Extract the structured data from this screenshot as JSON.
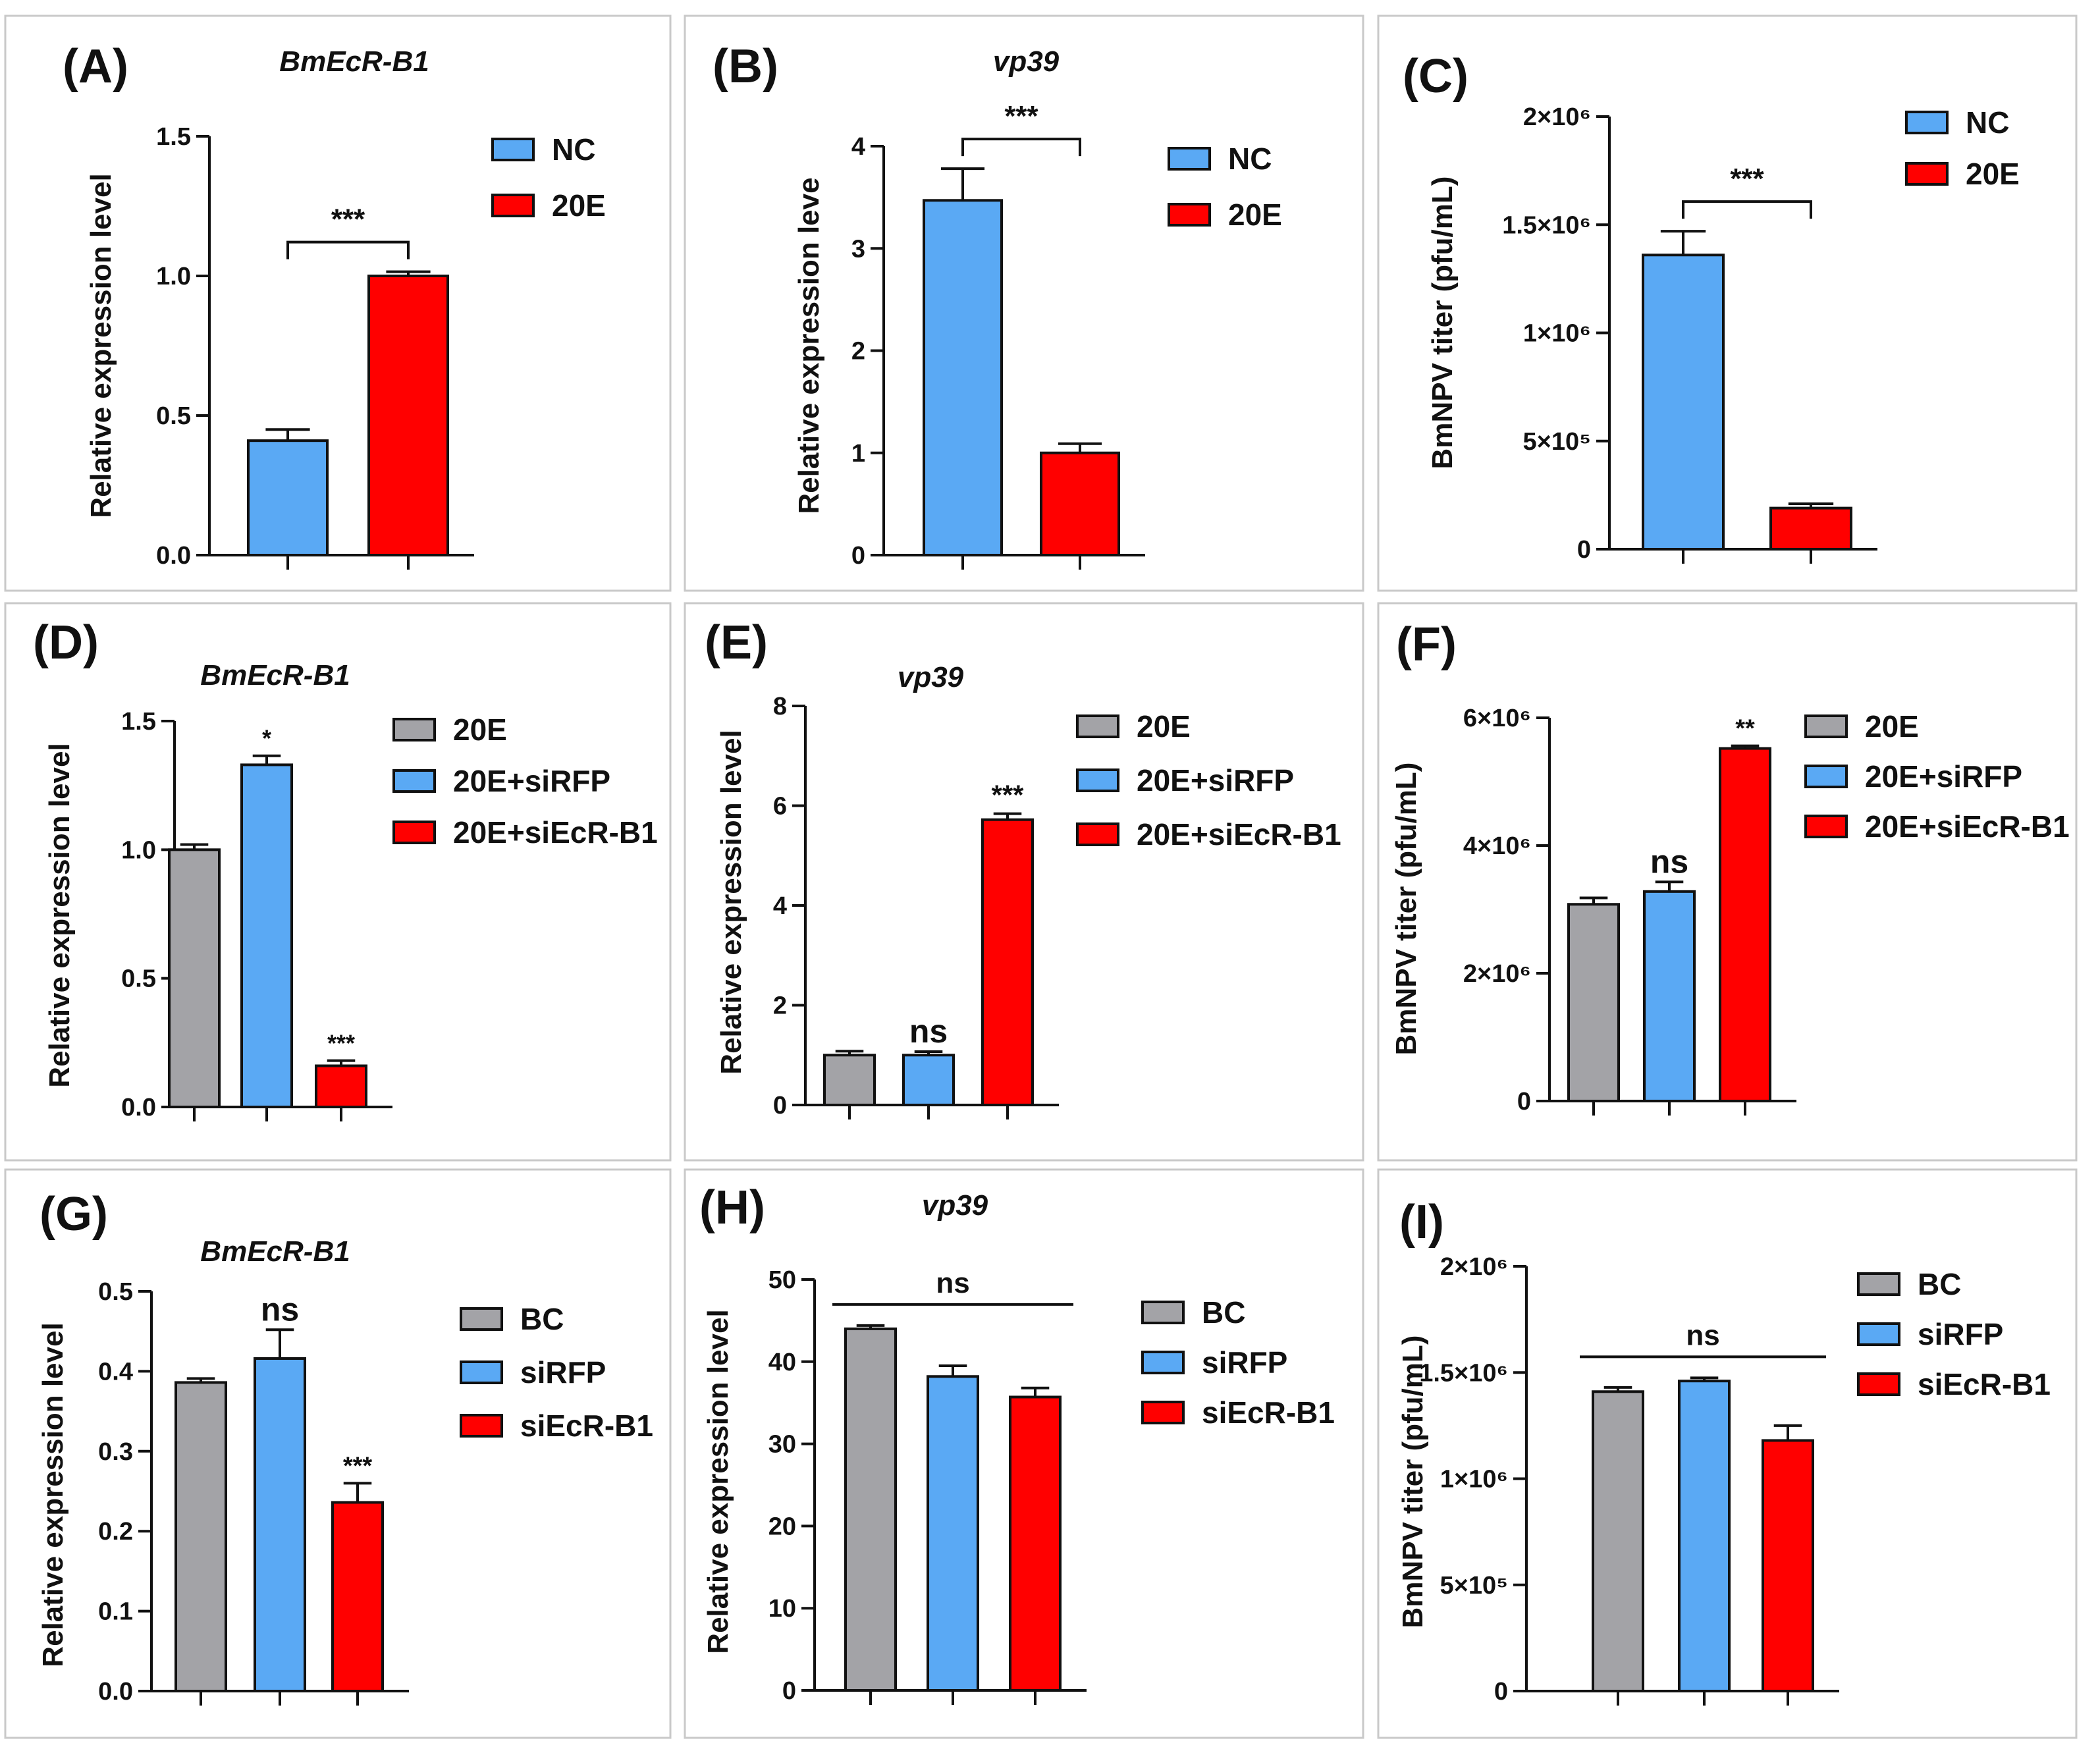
{
  "figure": {
    "colors": {
      "NC": "#5aa9f4",
      "20E": "#ff0000",
      "gray": "#a3a3a7",
      "blue": "#5aa9f4",
      "red": "#ff0000",
      "frame": "#c9c9c9",
      "ink": "#111111"
    }
  },
  "chart_data": [
    {
      "panel": "(A)",
      "title": "BmEcR-B1",
      "type": "bar",
      "ylabel": "Relative expression level",
      "ylim": [
        0,
        1.5
      ],
      "yticks": [
        "0.0",
        "0.5",
        "1.0",
        "1.5"
      ],
      "ytick_values": [
        0,
        0.5,
        1.0,
        1.5
      ],
      "categories": [
        "NC",
        "20E"
      ],
      "values": [
        0.41,
        1.0
      ],
      "errors": [
        0.04,
        0.015
      ],
      "colors": [
        "#5aa9f4",
        "#ff0000"
      ],
      "legend": [
        "NC",
        "20E"
      ],
      "significance": [
        {
          "text": "***",
          "type": "bracket",
          "from": 0,
          "to": 1
        }
      ]
    },
    {
      "panel": "(B)",
      "title": "vp39",
      "type": "bar",
      "ylabel": "Relative expression leve",
      "ylim": [
        0,
        4
      ],
      "yticks": [
        "0",
        "1",
        "2",
        "3",
        "4"
      ],
      "ytick_values": [
        0,
        1,
        2,
        3,
        4
      ],
      "categories": [
        "NC",
        "20E"
      ],
      "values": [
        3.47,
        1.0
      ],
      "errors": [
        0.31,
        0.09
      ],
      "colors": [
        "#5aa9f4",
        "#ff0000"
      ],
      "legend": [
        "NC",
        "20E"
      ],
      "significance": [
        {
          "text": "***",
          "type": "bracket",
          "from": 0,
          "to": 1
        }
      ]
    },
    {
      "panel": "(C)",
      "title": "",
      "type": "bar",
      "ylabel": "BmNPV titer (pfu/mL)",
      "ylim": [
        0,
        2000000
      ],
      "yticks": [
        "0",
        "5×10⁵",
        "1×10⁶",
        "1.5×10⁶",
        "2×10⁶"
      ],
      "ytick_values": [
        0,
        500000,
        1000000,
        1500000,
        2000000
      ],
      "categories": [
        "NC",
        "20E"
      ],
      "values": [
        1360000,
        190000
      ],
      "errors": [
        110000,
        20000
      ],
      "colors": [
        "#5aa9f4",
        "#ff0000"
      ],
      "legend": [
        "NC",
        "20E"
      ],
      "significance": [
        {
          "text": "***",
          "type": "bracket",
          "from": 0,
          "to": 1
        }
      ]
    },
    {
      "panel": "(D)",
      "title": "BmEcR-B1",
      "type": "bar",
      "ylabel": "Relative expression level",
      "ylim": [
        0,
        1.5
      ],
      "yticks": [
        "0.0",
        "0.5",
        "1.0",
        "1.5"
      ],
      "ytick_values": [
        0,
        0.5,
        1.0,
        1.5
      ],
      "categories": [
        "20E",
        "20E+siRFP",
        "20E+siEcR-B1"
      ],
      "values": [
        1.0,
        1.33,
        0.16
      ],
      "errors": [
        0.02,
        0.035,
        0.02
      ],
      "colors": [
        "#a3a3a7",
        "#5aa9f4",
        "#ff0000"
      ],
      "legend": [
        "20E",
        "20E+siRFP",
        "20E+siEcR-B1"
      ],
      "significance": [
        {
          "text": "*",
          "type": "bar",
          "index": 1
        },
        {
          "text": "***",
          "type": "bar",
          "index": 2
        }
      ]
    },
    {
      "panel": "(E)",
      "title": "vp39",
      "type": "bar",
      "ylabel": "Relative expression level",
      "ylim": [
        0,
        8
      ],
      "yticks": [
        "0",
        "2",
        "4",
        "6",
        "8"
      ],
      "ytick_values": [
        0,
        2,
        4,
        6,
        8
      ],
      "categories": [
        "20E",
        "20E+siRFP",
        "20E+siEcR-B1"
      ],
      "values": [
        1.0,
        1.0,
        5.72
      ],
      "errors": [
        0.08,
        0.07,
        0.12
      ],
      "colors": [
        "#a3a3a7",
        "#5aa9f4",
        "#ff0000"
      ],
      "legend": [
        "20E",
        "20E+siRFP",
        "20E+siEcR-B1"
      ],
      "significance": [
        {
          "text": "ns",
          "type": "bar",
          "index": 1
        },
        {
          "text": "***",
          "type": "bar",
          "index": 2
        }
      ]
    },
    {
      "panel": "(F)",
      "title": "",
      "type": "bar",
      "ylabel": "BmNPV titer (pfu/mL)",
      "ylim": [
        0,
        6000000
      ],
      "yticks": [
        "0",
        "2×10⁶",
        "4×10⁶",
        "6×10⁶"
      ],
      "ytick_values": [
        0,
        2000000,
        4000000,
        6000000
      ],
      "categories": [
        "20E",
        "20E+siRFP",
        "20E+siEcR-B1"
      ],
      "values": [
        3080000,
        3280000,
        5520000
      ],
      "errors": [
        100000,
        150000,
        40000
      ],
      "colors": [
        "#a3a3a7",
        "#5aa9f4",
        "#ff0000"
      ],
      "legend": [
        "20E",
        "20E+siRFP",
        "20E+siEcR-B1"
      ],
      "significance": [
        {
          "text": "ns",
          "type": "bar",
          "index": 1
        },
        {
          "text": "**",
          "type": "bar",
          "index": 2
        }
      ]
    },
    {
      "panel": "(G)",
      "title": "BmEcR-B1",
      "type": "bar",
      "ylabel": "Relative expression level",
      "ylim": [
        0,
        0.5
      ],
      "yticks": [
        "0.0",
        "0.1",
        "0.2",
        "0.3",
        "0.4",
        "0.5"
      ],
      "ytick_values": [
        0,
        0.1,
        0.2,
        0.3,
        0.4,
        0.5
      ],
      "categories": [
        "BC",
        "siRFP",
        "siEcR-B1"
      ],
      "values": [
        0.386,
        0.416,
        0.236
      ],
      "errors": [
        0.005,
        0.036,
        0.024
      ],
      "colors": [
        "#a3a3a7",
        "#5aa9f4",
        "#ff0000"
      ],
      "legend": [
        "BC",
        "siRFP",
        "siEcR-B1"
      ],
      "significance": [
        {
          "text": "ns",
          "type": "bar",
          "index": 1
        },
        {
          "text": "***",
          "type": "bar",
          "index": 2
        }
      ]
    },
    {
      "panel": "(H)",
      "title": "vp39",
      "type": "bar",
      "ylabel": "Relative expression level",
      "ylim": [
        0,
        50
      ],
      "yticks": [
        "0",
        "10",
        "20",
        "30",
        "40",
        "50"
      ],
      "ytick_values": [
        0,
        10,
        20,
        30,
        40,
        50
      ],
      "categories": [
        "BC",
        "siRFP",
        "siEcR-B1"
      ],
      "values": [
        44.0,
        38.2,
        35.7
      ],
      "errors": [
        0.4,
        1.3,
        1.1
      ],
      "colors": [
        "#a3a3a7",
        "#5aa9f4",
        "#ff0000"
      ],
      "legend": [
        "BC",
        "siRFP",
        "siEcR-B1"
      ],
      "significance": [
        {
          "text": "ns",
          "type": "line",
          "from": 0,
          "to": 2
        }
      ]
    },
    {
      "panel": "(I)",
      "title": "",
      "type": "bar",
      "ylabel": "BmNPV titer (pfu/mL)",
      "ylim": [
        0,
        2000000
      ],
      "yticks": [
        "0",
        "5×10⁵",
        "1×10⁶",
        "1.5×10⁶",
        "2×10⁶"
      ],
      "ytick_values": [
        0,
        500000,
        1000000,
        1500000,
        2000000
      ],
      "categories": [
        "BC",
        "siRFP",
        "siEcR-B1"
      ],
      "values": [
        1410000,
        1460000,
        1180000
      ],
      "errors": [
        20000,
        15000,
        70000
      ],
      "colors": [
        "#a3a3a7",
        "#5aa9f4",
        "#ff0000"
      ],
      "legend": [
        "BC",
        "siRFP",
        "siEcR-B1"
      ],
      "significance": [
        {
          "text": "ns",
          "type": "line",
          "from": 0,
          "to": 2
        }
      ]
    }
  ]
}
